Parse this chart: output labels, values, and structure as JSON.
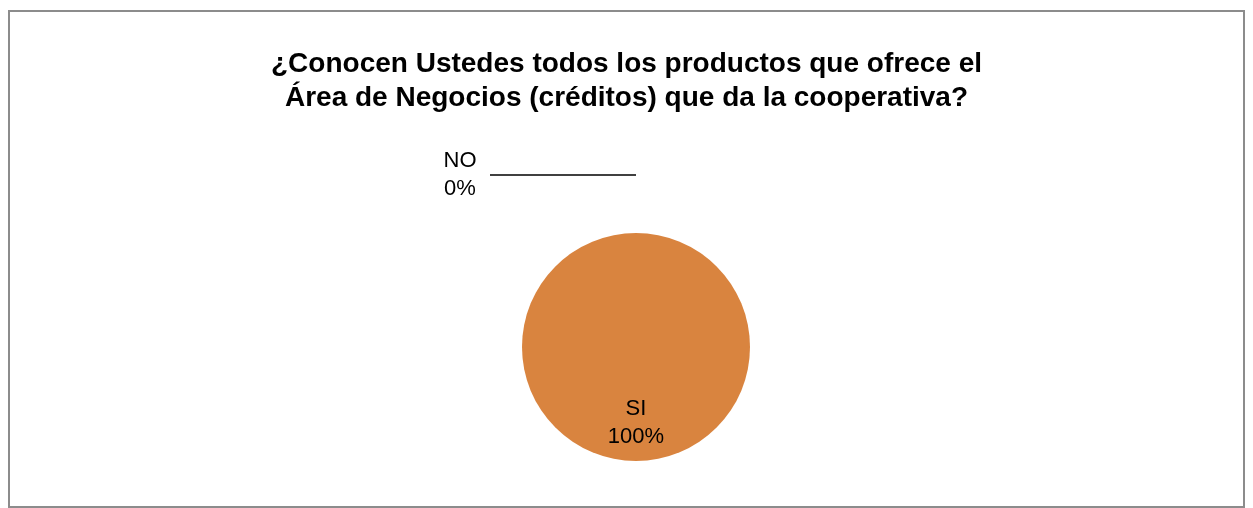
{
  "chart_data": {
    "type": "pie",
    "title": "¿Conocen Ustedes todos los productos que ofrece el\nÁrea de Negocios (créditos) que da la cooperativa?",
    "categories": [
      "SI",
      "NO"
    ],
    "values": [
      100,
      0
    ],
    "colors": [
      "#d9843f",
      "#4f81bd"
    ],
    "value_labels": [
      "100%",
      "0%"
    ]
  }
}
